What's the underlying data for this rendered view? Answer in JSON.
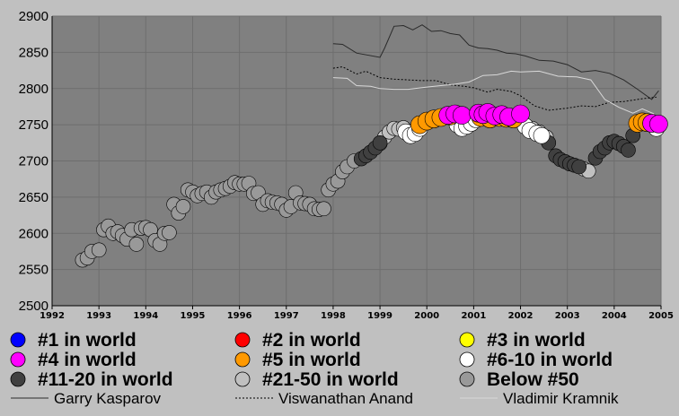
{
  "chart_data": {
    "type": "scatter",
    "title": "",
    "xlabel": "",
    "ylabel": "",
    "xlim": [
      1992,
      2005
    ],
    "ylim": [
      2500,
      2900
    ],
    "x_ticks": [
      "1992",
      "1993",
      "1994",
      "1995",
      "1996",
      "1997",
      "1998",
      "1999",
      "2000",
      "2001",
      "2002",
      "2003",
      "2004",
      "2005"
    ],
    "y_ticks": [
      "2500",
      "2550",
      "2600",
      "2650",
      "2700",
      "2750",
      "2800",
      "2850",
      "2900"
    ],
    "grid": true,
    "legend_position": "bottom",
    "rank_legend": [
      {
        "label": "#1 in world",
        "color": "#0000ff"
      },
      {
        "label": "#2 in world",
        "color": "#ff0000"
      },
      {
        "label": "#3 in world",
        "color": "#ffff00"
      },
      {
        "label": "#4 in world",
        "color": "#ff00ff"
      },
      {
        "label": "#5 in world",
        "color": "#ff9900"
      },
      {
        "label": "#6-10 in world",
        "color": "#ffffff"
      },
      {
        "label": "#11-20 in world",
        "color": "#404040"
      },
      {
        "label": "#21-50 in world",
        "color": "#c0c0c0"
      },
      {
        "label": "Below #50",
        "color": "#999999"
      }
    ],
    "line_legend": [
      {
        "label": "Garry Kasparov",
        "color": "#2a2a2a",
        "dash": "solid"
      },
      {
        "label": "Viswanathan Anand",
        "color": "#000000",
        "dash": "dotted"
      },
      {
        "label": "Vladimir Kramnik",
        "color": "#d8d8d8",
        "dash": "solid"
      }
    ],
    "series": [
      {
        "name": "Garry Kasparov",
        "style": "line",
        "x": [
          1998.0,
          1998.2,
          1998.5,
          1999.0,
          1999.1,
          1999.3,
          1999.5,
          1999.7,
          1999.9,
          2000.1,
          2000.3,
          2000.5,
          2000.7,
          2000.9,
          2001.1,
          2001.3,
          2001.5,
          2001.7,
          2001.9,
          2002.1,
          2002.4,
          2002.7,
          2003.0,
          2003.3,
          2003.6,
          2003.9,
          2004.2,
          2004.5,
          2004.8,
          2004.95
        ],
        "y": [
          2862,
          2861,
          2849,
          2843,
          2856,
          2886,
          2887,
          2881,
          2888,
          2879,
          2880,
          2876,
          2874,
          2860,
          2856,
          2855,
          2853,
          2849,
          2848,
          2845,
          2839,
          2838,
          2833,
          2823,
          2825,
          2821,
          2812,
          2799,
          2785,
          2797
        ]
      },
      {
        "name": "Viswanathan Anand",
        "style": "dotted",
        "x": [
          1998.0,
          1998.2,
          1998.5,
          1998.7,
          1999.0,
          1999.3,
          1999.6,
          1999.9,
          2000.2,
          2000.5,
          2000.8,
          2001.0,
          2001.3,
          2001.5,
          2001.8,
          2002.0,
          2002.3,
          2002.6,
          2003.0,
          2003.3,
          2003.6,
          2003.9,
          2004.2,
          2004.6,
          2004.9
        ],
        "y": [
          2828,
          2830,
          2820,
          2824,
          2815,
          2813,
          2812,
          2811,
          2811,
          2805,
          2803,
          2801,
          2795,
          2799,
          2796,
          2790,
          2776,
          2770,
          2773,
          2776,
          2775,
          2781,
          2782,
          2786,
          2788
        ]
      },
      {
        "name": "Vladimir Kramnik",
        "style": "line",
        "x": [
          1998.0,
          1998.3,
          1998.5,
          1998.8,
          1999.0,
          1999.3,
          1999.6,
          2000.0,
          2000.3,
          2000.6,
          2000.9,
          2001.2,
          2001.5,
          2001.8,
          2002.0,
          2002.4,
          2002.8,
          2003.2,
          2003.5,
          2003.8,
          2004.1,
          2004.4,
          2004.6,
          2004.85
        ],
        "y": [
          2815,
          2814,
          2804,
          2803,
          2800,
          2799,
          2799,
          2802,
          2804,
          2806,
          2809,
          2818,
          2819,
          2824,
          2823,
          2824,
          2817,
          2816,
          2812,
          2785,
          2774,
          2766,
          2772,
          2765
        ]
      },
      {
        "name": "#1 in world",
        "style": "marker",
        "color": "#0000ff",
        "x": [],
        "y": []
      },
      {
        "name": "#2 in world",
        "style": "marker",
        "color": "#ff0000",
        "x": [],
        "y": []
      },
      {
        "name": "#3 in world",
        "style": "marker",
        "color": "#ffff00",
        "x": [],
        "y": []
      },
      {
        "name": "#4 in world",
        "style": "marker",
        "color": "#ff00ff",
        "x": [
          2000.45,
          2000.6,
          2000.75,
          2001.1,
          2001.2,
          2001.3,
          2001.45,
          2001.6,
          2001.75,
          2002.0,
          2004.8,
          2004.95
        ],
        "y": [
          2763,
          2765,
          2763,
          2766,
          2764,
          2767,
          2762,
          2764,
          2761,
          2765,
          2752,
          2751
        ]
      },
      {
        "name": "#5 in world",
        "style": "marker",
        "color": "#ff9900",
        "x": [
          1999.85,
          2000.0,
          2000.15,
          2000.3,
          2000.5,
          2001.15,
          2001.35,
          2001.55,
          2001.7,
          2001.85,
          2004.5,
          2004.6,
          2004.7,
          2004.8
        ],
        "y": [
          2750,
          2755,
          2758,
          2760,
          2762,
          2760,
          2758,
          2760,
          2759,
          2758,
          2752,
          2754,
          2753,
          2752
        ]
      },
      {
        "name": "#6-10 in world",
        "style": "marker",
        "color": "#ffffff",
        "x": [
          1999.55,
          1999.65,
          1999.75,
          1999.85,
          2000.0,
          2000.65,
          2000.75,
          2000.85,
          2000.95,
          2001.05,
          2002.1,
          2002.2,
          2002.35,
          2002.45,
          2004.9
        ],
        "y": [
          2740,
          2735,
          2738,
          2745,
          2755,
          2750,
          2745,
          2748,
          2752,
          2757,
          2748,
          2742,
          2738,
          2735,
          2745
        ]
      },
      {
        "name": "#11-20 in world",
        "style": "marker",
        "color": "#404040",
        "x": [
          1998.6,
          1998.7,
          1998.8,
          1998.9,
          1999.0,
          2002.6,
          2002.75,
          2002.85,
          2002.95,
          2003.05,
          2003.15,
          2003.25,
          2003.6,
          2003.7,
          2003.8,
          2003.9,
          2004.0,
          2004.1,
          2004.2,
          2004.3,
          2004.4
        ],
        "y": [
          2703,
          2707,
          2712,
          2718,
          2725,
          2725,
          2707,
          2702,
          2699,
          2696,
          2694,
          2692,
          2704,
          2713,
          2718,
          2725,
          2727,
          2724,
          2720,
          2715,
          2735
        ]
      },
      {
        "name": "#21-50 in world",
        "style": "marker",
        "color": "#c0c0c0",
        "x": [
          1999.0,
          1999.1,
          1999.2,
          1999.3,
          1999.4,
          1999.5,
          2002.25,
          2002.4,
          2002.55,
          2003.35,
          2003.45
        ],
        "y": [
          2724,
          2733,
          2740,
          2745,
          2744,
          2746,
          2745,
          2740,
          2733,
          2689,
          2686
        ]
      },
      {
        "name": "Below #50",
        "style": "marker",
        "color": "#999999",
        "x": [
          1992.65,
          1992.75,
          1992.85,
          1993.0,
          1993.1,
          1993.2,
          1993.3,
          1993.4,
          1993.5,
          1993.6,
          1993.7,
          1993.8,
          1993.9,
          1994.0,
          1994.1,
          1994.2,
          1994.3,
          1994.4,
          1994.5,
          1994.6,
          1994.7,
          1994.8,
          1994.9,
          1995.0,
          1995.1,
          1995.2,
          1995.3,
          1995.4,
          1995.5,
          1995.6,
          1995.7,
          1995.8,
          1995.9,
          1996.0,
          1996.1,
          1996.2,
          1996.3,
          1996.4,
          1996.5,
          1996.6,
          1996.7,
          1996.8,
          1996.9,
          1997.0,
          1997.1,
          1997.2,
          1997.3,
          1997.4,
          1997.5,
          1997.6,
          1997.7,
          1997.8,
          1997.9,
          1998.0,
          1998.1,
          1998.2,
          1998.3,
          1998.45
        ],
        "y": [
          2563,
          2566,
          2575,
          2577,
          2605,
          2610,
          2600,
          2602,
          2597,
          2592,
          2605,
          2585,
          2607,
          2608,
          2605,
          2590,
          2585,
          2600,
          2601,
          2640,
          2628,
          2637,
          2660,
          2657,
          2652,
          2655,
          2657,
          2650,
          2657,
          2660,
          2662,
          2665,
          2670,
          2668,
          2668,
          2669,
          2655,
          2656,
          2640,
          2645,
          2643,
          2642,
          2640,
          2632,
          2637,
          2656,
          2642,
          2641,
          2640,
          2634,
          2633,
          2634,
          2660,
          2668,
          2672,
          2685,
          2692,
          2700
        ]
      }
    ]
  }
}
